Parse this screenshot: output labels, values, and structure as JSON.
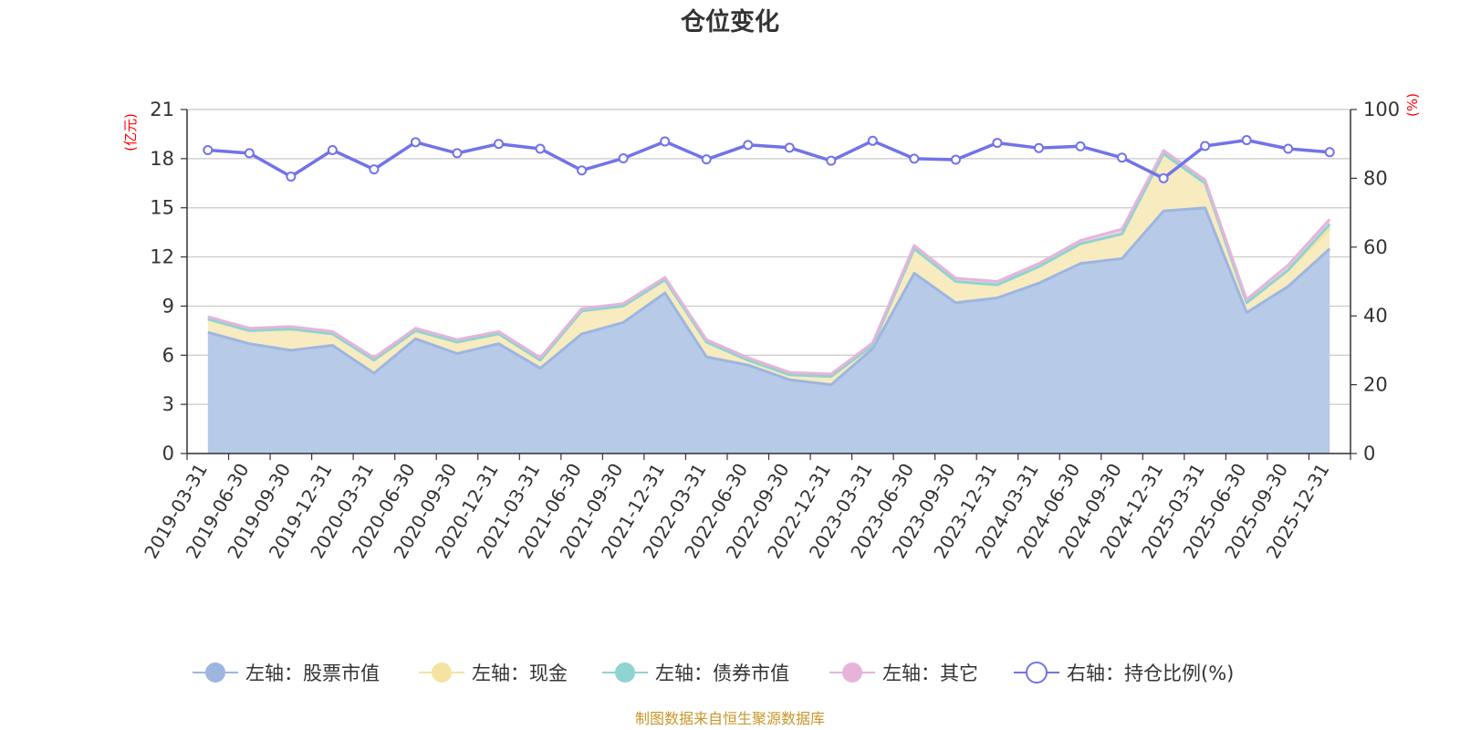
{
  "chart_data": {
    "type": "area",
    "title": "仓位变化",
    "source": "制图数据来自恒生聚源数据库",
    "left_axis": {
      "unit": "(亿元)",
      "min": 0,
      "max": 21,
      "ticks": [
        0,
        3,
        6,
        9,
        12,
        15,
        18,
        21
      ]
    },
    "right_axis": {
      "unit": "(%)",
      "min": 0,
      "max": 100,
      "ticks": [
        0,
        20,
        40,
        60,
        80,
        100
      ]
    },
    "categories": [
      "2019-03-31",
      "2019-06-30",
      "2019-09-30",
      "2019-12-31",
      "2020-03-31",
      "2020-06-30",
      "2020-09-30",
      "2020-12-31",
      "2021-03-31",
      "2021-06-30",
      "2021-09-30",
      "2021-12-31",
      "2022-03-31",
      "2022-06-30",
      "2022-09-30",
      "2022-12-31",
      "2023-03-31",
      "2023-06-30",
      "2023-09-30",
      "2023-12-31",
      "2024-03-31",
      "2024-06-30",
      "2024-09-30",
      "2024-12-31",
      "2025-03-31",
      "2025-06-30",
      "2025-09-30",
      "2025-12-31"
    ],
    "series": [
      {
        "name": "左轴：股票市值",
        "axis": "left",
        "stack": true,
        "color": "#9db6e0",
        "fill": "#b7cae8",
        "values": [
          7.4,
          6.7,
          6.3,
          6.6,
          4.9,
          7.0,
          6.1,
          6.7,
          5.2,
          7.3,
          8.0,
          9.8,
          5.9,
          5.4,
          4.5,
          4.2,
          6.4,
          11.0,
          9.2,
          9.5,
          10.4,
          11.6,
          11.9,
          14.8,
          15.0,
          8.6,
          10.2,
          12.5
        ]
      },
      {
        "name": "左轴：现金",
        "axis": "left",
        "stack": true,
        "color": "#f5e3a1",
        "fill": "#f8ebbf",
        "values": [
          0.8,
          0.8,
          1.3,
          0.7,
          0.8,
          0.5,
          0.7,
          0.6,
          0.5,
          1.4,
          1.0,
          0.8,
          0.9,
          0.3,
          0.3,
          0.5,
          0.2,
          1.5,
          1.3,
          0.8,
          1.0,
          1.2,
          1.5,
          3.5,
          1.5,
          0.6,
          1.0,
          1.2
        ]
      },
      {
        "name": "左轴：债券市值",
        "axis": "left",
        "stack": true,
        "color": "#8ed4d1",
        "fill": "#bfe6e3",
        "values": [
          0,
          0,
          0,
          0,
          0,
          0,
          0,
          0,
          0,
          0,
          0,
          0,
          0,
          0,
          0,
          0,
          0,
          0,
          0,
          0,
          0,
          0,
          0,
          0,
          0,
          0,
          0,
          0.3
        ]
      },
      {
        "name": "左轴：其它",
        "axis": "left",
        "stack": true,
        "color": "#e6b4da",
        "fill": "#f1d2ea",
        "values": [
          0.15,
          0.15,
          0.15,
          0.15,
          0.15,
          0.15,
          0.15,
          0.15,
          0.15,
          0.15,
          0.15,
          0.15,
          0.15,
          0.15,
          0.15,
          0.15,
          0.15,
          0.2,
          0.2,
          0.2,
          0.2,
          0.2,
          0.3,
          0.2,
          0.2,
          0.2,
          0.3,
          0.3
        ]
      },
      {
        "name": "右轴：持仓比例(%)",
        "axis": "right",
        "stack": false,
        "color": "#7273e8",
        "values": [
          88.2,
          87.3,
          80.5,
          88.2,
          82.6,
          90.5,
          87.3,
          90.0,
          88.6,
          82.3,
          85.8,
          90.7,
          85.5,
          89.7,
          88.9,
          85.1,
          90.9,
          85.7,
          85.4,
          90.3,
          88.8,
          89.3,
          86.0,
          80.0,
          89.4,
          91.1,
          88.6,
          87.6
        ]
      }
    ]
  }
}
